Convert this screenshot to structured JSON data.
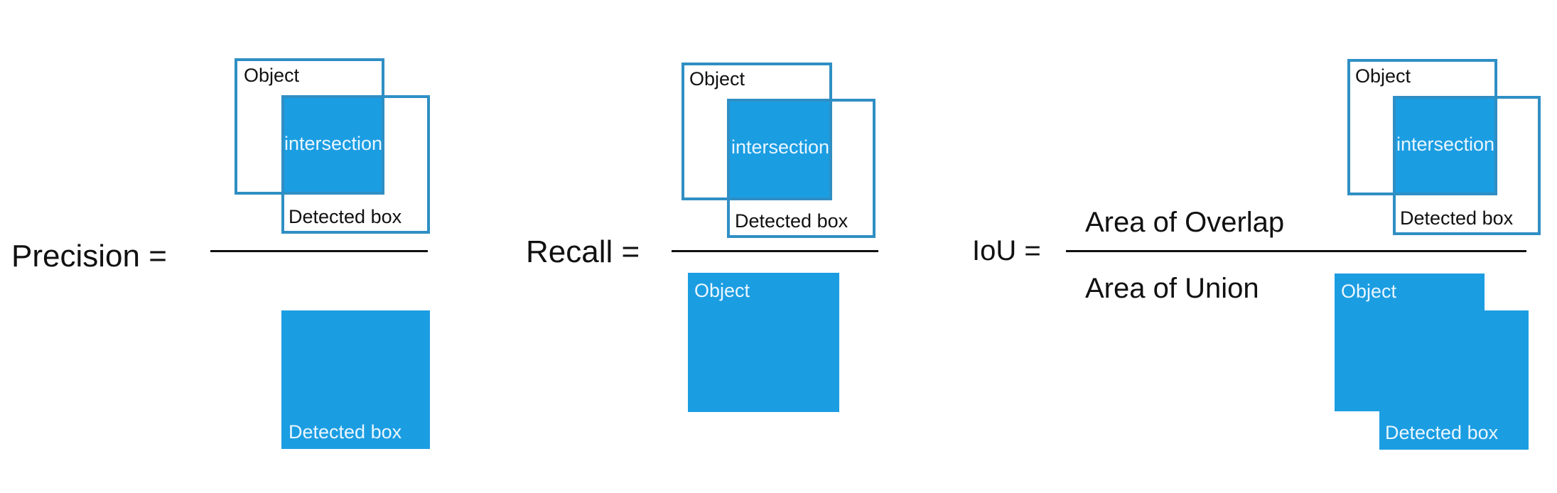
{
  "colors": {
    "box_fill": "#1b9de2",
    "box_outline": "#2f8fc4",
    "text": "#111111",
    "line": "#111111"
  },
  "precision": {
    "label": "Precision =",
    "numerator": {
      "object_label": "Object",
      "intersection_label": "intersection",
      "detected_label": "Detected box"
    },
    "denominator": {
      "detected_label": "Detected box"
    }
  },
  "recall": {
    "label": "Recall =",
    "numerator": {
      "object_label": "Object",
      "intersection_label": "intersection",
      "detected_label": "Detected box"
    },
    "denominator": {
      "object_label": "Object"
    }
  },
  "iou": {
    "label": "IoU =",
    "numerator_text": "Area of Overlap",
    "denominator_text": "Area of Union",
    "numerator_icon": {
      "object_label": "Object",
      "intersection_label": "intersection",
      "detected_label": "Detected box"
    },
    "denominator_icon": {
      "object_label": "Object",
      "detected_label": "Detected box"
    }
  }
}
